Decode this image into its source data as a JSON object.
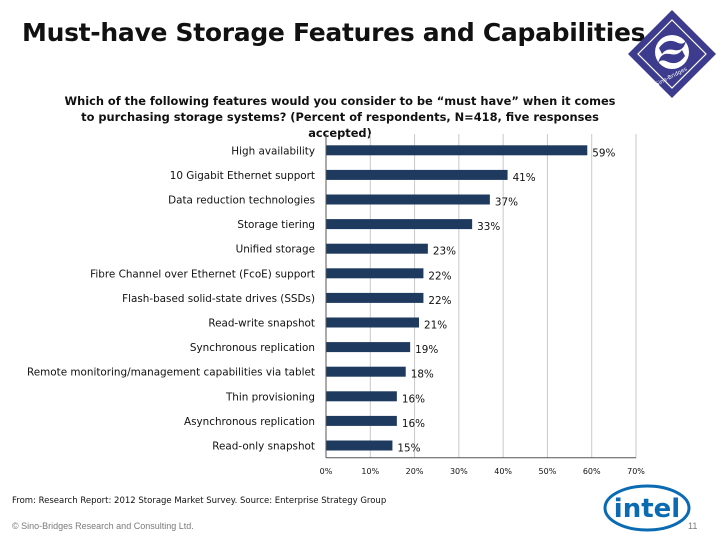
{
  "slide": {
    "title": "Must-have Storage Features and Capabilities",
    "page_number": "11"
  },
  "logo": {
    "text": "Sino-Bridges",
    "colors": {
      "primary": "#3d3b8e",
      "secondary": "#ffffff"
    }
  },
  "chart_data": {
    "type": "bar",
    "orientation": "horizontal",
    "title": "Which of the following features would you consider to be “must have” when it comes to purchasing storage systems? (Percent of respondents, N=418, five responses accepted)",
    "categories": [
      "High availability",
      "10 Gigabit Ethernet support",
      "Data reduction technologies",
      "Storage tiering",
      "Unified storage",
      "Fibre Channel over Ethernet (FcoE) support",
      "Flash-based solid-state drives (SSDs)",
      "Read-write snapshot",
      "Synchronous replication",
      "Remote monitoring/management capabilities via tablet",
      "Thin provisioning",
      "Asynchronous replication",
      "Read-only snapshot"
    ],
    "values": [
      59,
      41,
      37,
      33,
      23,
      22,
      22,
      21,
      19,
      18,
      16,
      16,
      15
    ],
    "value_labels": [
      "59%",
      "41%",
      "37%",
      "33%",
      "23%",
      "22%",
      "22%",
      "21%",
      "19%",
      "18%",
      "16%",
      "16%",
      "15%"
    ],
    "x_ticks": [
      "0%",
      "10%",
      "20%",
      "30%",
      "40%",
      "50%",
      "60%",
      "70%"
    ],
    "xlim": [
      0,
      70
    ],
    "xlabel": "",
    "ylabel": "",
    "grid": true,
    "bar_color": "#1f3a5f",
    "grid_color": "#c8c8c8"
  },
  "footer": {
    "source": "From: Research Report: 2012 Storage Market Survey. Source: Enterprise Strategy Group",
    "copyright": "© Sino-Bridges  Research and Consulting Ltd."
  },
  "intel_logo": {
    "text": "intel",
    "color": "#0a6bb3"
  }
}
